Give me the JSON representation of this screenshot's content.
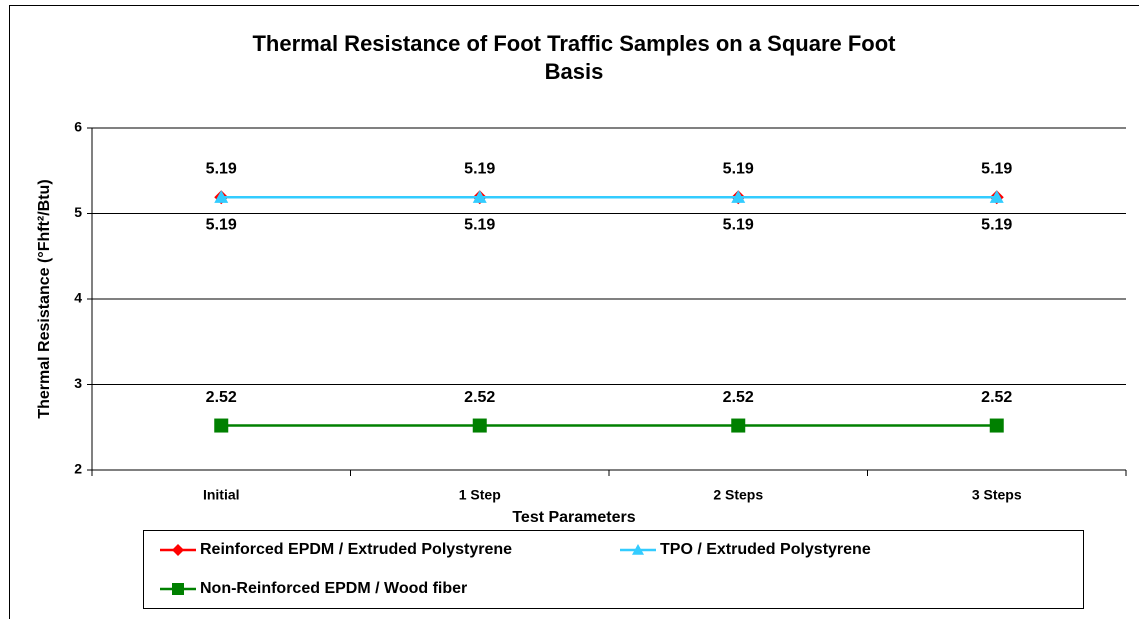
{
  "chart_data": {
    "type": "line",
    "title": "Thermal Resistance of Foot Traffic Samples on a Square Foot Basis",
    "x_label": "Test Parameters",
    "y_label": "Thermal Resistance (°Fhft²/Btu)",
    "categories": [
      "Initial",
      "1 Step",
      "2 Steps",
      "3 Steps"
    ],
    "series": [
      {
        "name": "Reinforced EPDM / Extruded Polystyrene",
        "color": "#ff0000",
        "marker": "diamond",
        "label_position": "above",
        "values": [
          5.19,
          5.19,
          5.19,
          5.19
        ]
      },
      {
        "name": "TPO / Extruded Polystyrene",
        "color": "#33ccff",
        "marker": "triangle",
        "label_position": "below",
        "values": [
          5.19,
          5.19,
          5.19,
          5.19
        ]
      },
      {
        "name": "Non-Reinforced EPDM / Wood fiber",
        "color": "#008000",
        "marker": "square",
        "label_position": "above",
        "values": [
          2.52,
          2.52,
          2.52,
          2.52
        ]
      }
    ],
    "ylim": [
      2,
      6
    ],
    "yticks": [
      2,
      3,
      4,
      5,
      6
    ],
    "grid": true,
    "legend": "bottom"
  }
}
